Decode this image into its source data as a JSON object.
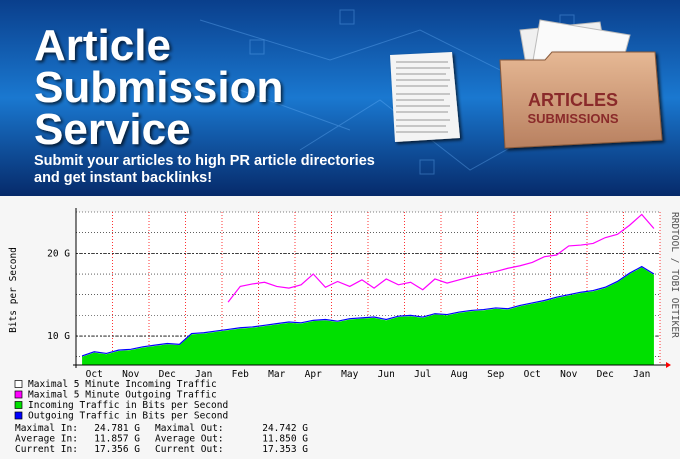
{
  "banner": {
    "title": [
      "Article",
      "Submission",
      "Service"
    ],
    "subtitle": [
      "Submit your articles to high PR article directories",
      "and get instant backlinks!"
    ],
    "folder_label": [
      "ARTICLES",
      "SUBMISSIONS"
    ]
  },
  "chart_data": {
    "type": "area",
    "y_label": "Bits per Second",
    "side_label": "RRDTOOL / TOBI OETIKER",
    "categories": [
      null,
      "Oct",
      null,
      null,
      "Nov",
      null,
      null,
      "Dec",
      null,
      null,
      "Jan",
      null,
      null,
      "Feb",
      null,
      null,
      "Mar",
      null,
      null,
      "Apr",
      null,
      null,
      "May",
      null,
      null,
      "Jun",
      null,
      null,
      "Jul",
      null,
      null,
      "Aug",
      null,
      null,
      "Sep",
      null,
      null,
      "Oct",
      null,
      null,
      "Nov",
      null,
      null,
      "Dec",
      null,
      null,
      "Jan",
      null
    ],
    "ylim": [
      6.5,
      25
    ],
    "yticks": [
      {
        "value": 10,
        "label": "10 G"
      },
      {
        "value": 20,
        "label": "20 G"
      }
    ],
    "grid": true,
    "series": [
      {
        "name": "Incoming Traffic in Bits per Second",
        "color": "#00e000",
        "values": [
          7.5,
          8.0,
          7.8,
          8.2,
          8.3,
          8.6,
          8.8,
          9.0,
          8.9,
          10.2,
          10.3,
          10.5,
          10.7,
          10.9,
          11.0,
          11.2,
          11.4,
          11.6,
          11.5,
          11.8,
          11.9,
          11.7,
          12.0,
          12.1,
          12.2,
          11.9,
          12.3,
          12.4,
          12.2,
          12.6,
          12.5,
          12.8,
          13.0,
          13.1,
          13.3,
          13.2,
          13.6,
          13.9,
          14.2,
          14.6,
          14.9,
          15.2,
          15.4,
          15.8,
          16.5,
          17.5,
          18.3,
          17.4
        ]
      },
      {
        "name": "Outgoing Traffic in Bits per Second",
        "color": "#0000ff",
        "values": [
          7.6,
          8.1,
          7.9,
          8.3,
          8.4,
          8.7,
          8.9,
          9.1,
          9.0,
          10.3,
          10.4,
          10.6,
          10.8,
          11.0,
          11.1,
          11.3,
          11.5,
          11.7,
          11.6,
          11.9,
          12.0,
          11.8,
          12.1,
          12.2,
          12.3,
          12.0,
          12.4,
          12.5,
          12.3,
          12.7,
          12.6,
          12.9,
          13.1,
          13.2,
          13.4,
          13.3,
          13.7,
          14.0,
          14.3,
          14.7,
          15.0,
          15.3,
          15.5,
          15.9,
          16.6,
          17.6,
          18.4,
          17.5
        ]
      },
      {
        "name": "Maximal 5 Minute Outgoing Traffic",
        "color": "#ff00ff",
        "values": [
          null,
          null,
          null,
          null,
          null,
          null,
          null,
          null,
          null,
          null,
          null,
          null,
          14.1,
          16.0,
          16.3,
          16.5,
          16.0,
          15.8,
          16.2,
          17.5,
          15.9,
          16.6,
          16.0,
          16.8,
          15.8,
          16.9,
          16.2,
          16.5,
          15.6,
          16.9,
          16.4,
          16.8,
          17.2,
          17.5,
          17.8,
          18.2,
          18.5,
          18.9,
          19.6,
          19.8,
          20.9,
          21.0,
          21.2,
          21.9,
          22.3,
          23.4,
          24.7,
          23.0
        ]
      }
    ],
    "legend": [
      {
        "label": "Maximal 5 Minute Incoming Traffic",
        "color": "#ffffff"
      },
      {
        "label": "Maximal 5 Minute Outgoing Traffic",
        "color": "#ff00ff"
      },
      {
        "label": "Incoming Traffic in Bits per Second",
        "color": "#00e000"
      },
      {
        "label": "Outgoing Traffic in Bits per Second",
        "color": "#0000ff"
      }
    ],
    "stats": [
      [
        "Maximal In:",
        "24.781 G",
        "Maximal Out:",
        "24.742 G"
      ],
      [
        "Average In:",
        "11.857 G",
        "Average Out:",
        "11.850 G"
      ],
      [
        "Current In:",
        "17.356 G",
        "Current Out:",
        "17.353 G"
      ]
    ]
  }
}
